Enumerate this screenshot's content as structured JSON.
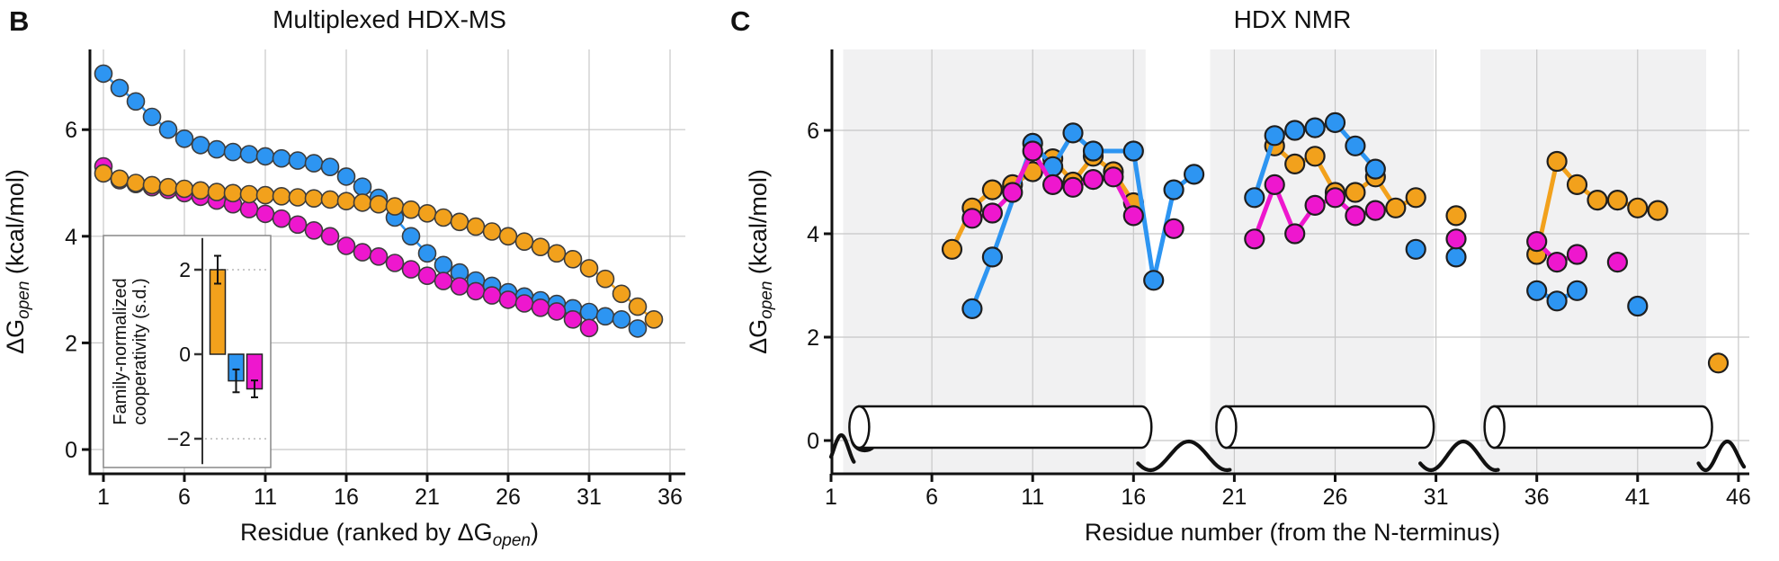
{
  "colors": {
    "blue": "#2D95F2",
    "orange": "#F2A11C",
    "magenta": "#EE17CE",
    "marker_edge_b": "#3c3c3c",
    "marker_edge_c": "#1f1f1f",
    "grid": "#c7c7c7",
    "band": "#f1f1f2",
    "axis": "#111111",
    "inset_border": "#888888",
    "dotted_ref": "#c9c9c9"
  },
  "panels": {
    "b": {
      "letter": "B",
      "title": "Multiplexed HDX-MS"
    },
    "c": {
      "letter": "C",
      "title": "HDX NMR",
      "xlabel": "Residue number (from the N-terminus)"
    }
  },
  "chart_data": [
    {
      "id": "hdx_ms_ranked",
      "type": "scatter",
      "title": "Multiplexed HDX-MS",
      "xlabel_parts": {
        "pre": "Residue (ranked by ΔG",
        "sub": "open",
        "post": ")"
      },
      "ylabel_parts": {
        "pre": "ΔG",
        "sub": "open",
        "post": " (kcal/mol)"
      },
      "xticks": [
        1,
        6,
        11,
        16,
        21,
        26,
        31,
        36
      ],
      "yticks": [
        0,
        2,
        4,
        6
      ],
      "xlim": [
        0.2,
        36.9
      ],
      "ylim": [
        -0.46,
        7.5
      ],
      "grid": true,
      "legend_position": "none",
      "series": [
        {
          "name": "blue",
          "color": "blue",
          "start_rank": 1,
          "values": [
            7.05,
            6.78,
            6.53,
            6.24,
            6.0,
            5.83,
            5.71,
            5.63,
            5.58,
            5.54,
            5.5,
            5.46,
            5.42,
            5.37,
            5.3,
            5.12,
            4.93,
            4.72,
            4.35,
            4.0,
            3.68,
            3.46,
            3.32,
            3.17,
            3.07,
            2.95,
            2.87,
            2.8,
            2.73,
            2.65,
            2.58,
            2.5,
            2.44,
            2.27
          ]
        },
        {
          "name": "magenta",
          "color": "magenta",
          "start_rank": 1,
          "values": [
            5.31,
            5.05,
            4.98,
            4.92,
            4.87,
            4.81,
            4.74,
            4.67,
            4.6,
            4.51,
            4.42,
            4.33,
            4.22,
            4.11,
            4.0,
            3.82,
            3.7,
            3.62,
            3.5,
            3.38,
            3.26,
            3.16,
            3.06,
            2.97,
            2.89,
            2.81,
            2.74,
            2.66,
            2.59,
            2.44,
            2.28
          ]
        },
        {
          "name": "orange",
          "color": "orange",
          "start_rank": 1,
          "values": [
            5.18,
            5.08,
            5.0,
            4.96,
            4.92,
            4.89,
            4.86,
            4.83,
            4.81,
            4.79,
            4.77,
            4.75,
            4.73,
            4.71,
            4.69,
            4.66,
            4.63,
            4.6,
            4.56,
            4.5,
            4.43,
            4.35,
            4.27,
            4.18,
            4.09,
            4.0,
            3.9,
            3.8,
            3.68,
            3.57,
            3.4,
            3.2,
            2.92,
            2.68,
            2.44
          ]
        }
      ],
      "inset": {
        "type": "bar",
        "ylabel_lines": [
          "Family-normalized",
          "cooperativity (s.d.)"
        ],
        "yticks": [
          2,
          0,
          -2
        ],
        "ylim": [
          -2.6,
          2.75
        ],
        "ref_lines": [
          2,
          -2
        ],
        "bars": [
          {
            "color": "orange",
            "value": 2.0,
            "err": 0.33
          },
          {
            "color": "blue",
            "value": -0.63,
            "err": 0.27
          },
          {
            "color": "magenta",
            "value": -0.82,
            "err": 0.2
          }
        ]
      }
    },
    {
      "id": "hdx_nmr",
      "type": "scatter",
      "title": "HDX NMR",
      "xlabel": "Residue number (from the N-terminus)",
      "ylabel_parts": {
        "pre": "ΔG",
        "sub": "open",
        "post": " (kcal/mol)"
      },
      "xticks": [
        1,
        6,
        11,
        16,
        21,
        26,
        31,
        36,
        41,
        46
      ],
      "yticks": [
        0,
        2,
        4,
        6
      ],
      "xlim": [
        1,
        46.5
      ],
      "ylim": [
        -0.65,
        7.5
      ],
      "grid": true,
      "legend_position": "none",
      "bands": [
        [
          1.6,
          16.6
        ],
        [
          19.8,
          30.9
        ],
        [
          33.2,
          44.4
        ]
      ],
      "helix": {
        "cylinders": [
          [
            2.4,
            16.4
          ],
          [
            20.6,
            30.4
          ],
          [
            33.9,
            44.2
          ]
        ],
        "coil_gaps": [
          [
            16.4,
            20.6
          ],
          [
            30.4,
            33.9
          ],
          [
            44.2,
            46.1
          ]
        ],
        "start_coil": [
          1,
          2.4
        ]
      },
      "series": [
        {
          "name": "orange",
          "color": "orange",
          "segments": [
            [
              [
                7,
                3.7
              ],
              [
                8,
                4.5
              ],
              [
                9,
                4.85
              ],
              [
                10,
                4.95
              ],
              [
                11,
                5.2
              ],
              [
                12,
                5.45
              ],
              [
                13,
                5.0
              ],
              [
                14,
                5.5
              ],
              [
                15,
                5.2
              ],
              [
                16,
                4.6
              ]
            ],
            [
              [
                23,
                5.7
              ],
              [
                24,
                5.35
              ],
              [
                25,
                5.5
              ],
              [
                26,
                4.8
              ],
              [
                27,
                4.8
              ],
              [
                28,
                5.1
              ],
              [
                29,
                4.5
              ],
              [
                30,
                4.7
              ]
            ],
            [
              [
                32,
                4.35
              ]
            ],
            [
              [
                36,
                3.6
              ],
              [
                37,
                5.4
              ],
              [
                38,
                4.95
              ],
              [
                39,
                4.65
              ],
              [
                40,
                4.65
              ],
              [
                41,
                4.5
              ],
              [
                42,
                4.45
              ]
            ],
            [
              [
                45,
                1.5
              ]
            ]
          ]
        },
        {
          "name": "blue",
          "color": "blue",
          "segments": [
            [
              [
                8,
                2.55
              ],
              [
                9,
                3.55
              ],
              [
                11,
                5.75
              ],
              [
                12,
                5.3
              ],
              [
                13,
                5.95
              ],
              [
                14,
                5.6
              ],
              [
                16,
                5.6
              ],
              [
                17,
                3.1
              ],
              [
                18,
                4.85
              ],
              [
                19,
                5.15
              ]
            ],
            [
              [
                22,
                4.7
              ],
              [
                23,
                5.9
              ],
              [
                24,
                6.0
              ],
              [
                25,
                6.05
              ],
              [
                26,
                6.15
              ],
              [
                27,
                5.7
              ],
              [
                28,
                5.25
              ]
            ],
            [
              [
                30,
                3.7
              ]
            ],
            [
              [
                32,
                3.55
              ]
            ],
            [
              [
                36,
                2.9
              ],
              [
                37,
                2.7
              ],
              [
                38,
                2.9
              ]
            ],
            [
              [
                41,
                2.6
              ]
            ]
          ]
        },
        {
          "name": "magenta",
          "color": "magenta",
          "segments": [
            [
              [
                8,
                4.3
              ],
              [
                9,
                4.4
              ],
              [
                10,
                4.8
              ],
              [
                11,
                5.6
              ],
              [
                12,
                4.95
              ],
              [
                13,
                4.9
              ],
              [
                14,
                5.05
              ],
              [
                15,
                5.1
              ],
              [
                16,
                4.35
              ]
            ],
            [
              [
                18,
                4.1
              ]
            ],
            [
              [
                22,
                3.9
              ],
              [
                23,
                4.95
              ],
              [
                24,
                4.0
              ],
              [
                25,
                4.55
              ],
              [
                26,
                4.7
              ],
              [
                27,
                4.35
              ],
              [
                28,
                4.45
              ]
            ],
            [
              [
                32,
                3.9
              ]
            ],
            [
              [
                36,
                3.85
              ],
              [
                37,
                3.45
              ],
              [
                38,
                3.6
              ]
            ],
            [
              [
                40,
                3.45
              ]
            ]
          ]
        }
      ]
    }
  ]
}
